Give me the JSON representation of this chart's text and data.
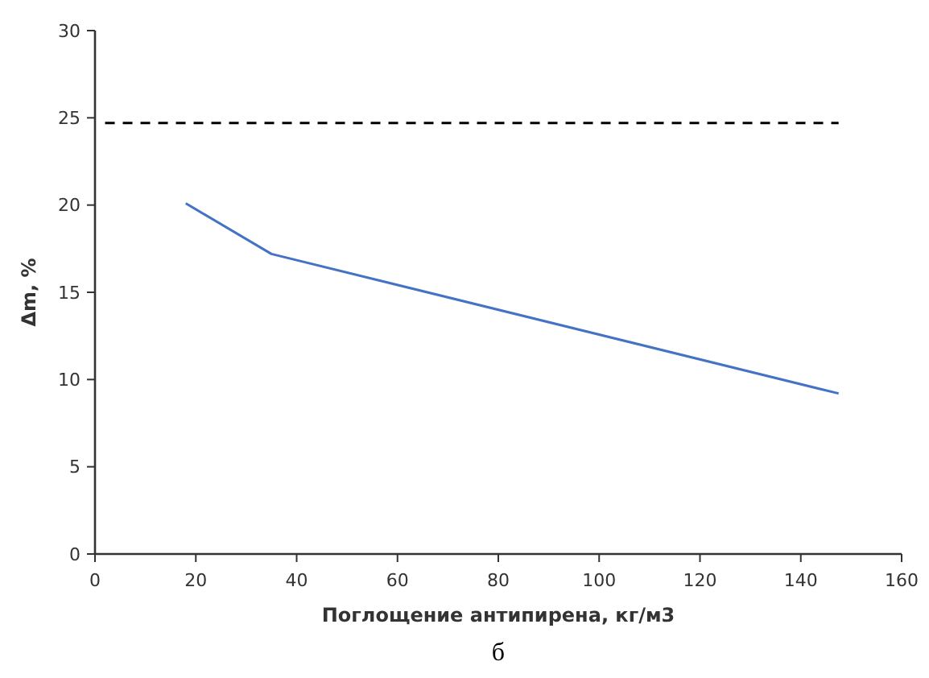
{
  "chart_data": {
    "type": "line",
    "xlabel": "Поглощение антипирена, кг/м3",
    "ylabel": "Δm, %",
    "annotations": [
      "б"
    ],
    "xlim": [
      0,
      160
    ],
    "xticks": [
      0,
      20,
      40,
      60,
      80,
      100,
      120,
      140,
      160
    ],
    "ylim": [
      0,
      30
    ],
    "yticks": [
      0,
      5,
      10,
      15,
      20,
      25,
      30
    ],
    "grid": false,
    "series": [
      {
        "color": "#4472c4",
        "x": [
          18,
          35,
          147.5
        ],
        "values": [
          20.1,
          17.2,
          9.2
        ],
        "line_style": "solid"
      },
      {
        "color": "#000000",
        "x": [
          2,
          147.5
        ],
        "values": [
          24.7,
          24.7
        ],
        "line_style": "dashed"
      }
    ]
  }
}
